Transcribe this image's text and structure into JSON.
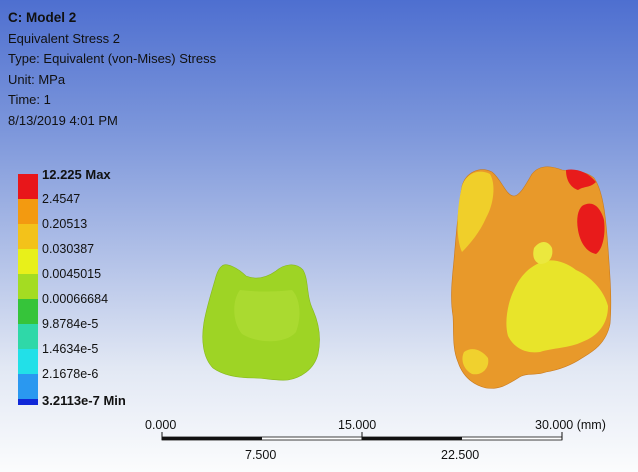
{
  "info": {
    "model": "C: Model 2",
    "result": "Equivalent Stress 2",
    "type": "Type: Equivalent (von-Mises) Stress",
    "unit": "Unit: MPa",
    "time": "Time: 1",
    "date": "8/13/2019 4:01 PM"
  },
  "legend": {
    "max_label": "12.225 Max",
    "values": [
      "2.4547",
      "0.20513",
      "0.030387",
      "0.0045015",
      "0.00066684",
      "9.8784e-5",
      "1.4634e-5",
      "2.1678e-6"
    ],
    "min_label": "3.2113e-7 Min",
    "colors": [
      "#e8161a",
      "#f39a10",
      "#f3c21a",
      "#e8f01a",
      "#a4dc22",
      "#36c43a",
      "#2fd8a8",
      "#22e0e8",
      "#2a98f0",
      "#1028d8"
    ]
  },
  "scale": {
    "top_labels": [
      "0.000",
      "15.000",
      "30.000 (mm)"
    ],
    "bottom_labels": [
      "7.500",
      "22.500"
    ]
  },
  "colors": {
    "left_part": "#9ed425",
    "right_part_base": "#e8992a",
    "right_part_hot": "#e81b1b",
    "right_part_yellow": "#e8e42a",
    "background_top": "#4e6fd0",
    "background_bottom": "#fbfcfd"
  }
}
